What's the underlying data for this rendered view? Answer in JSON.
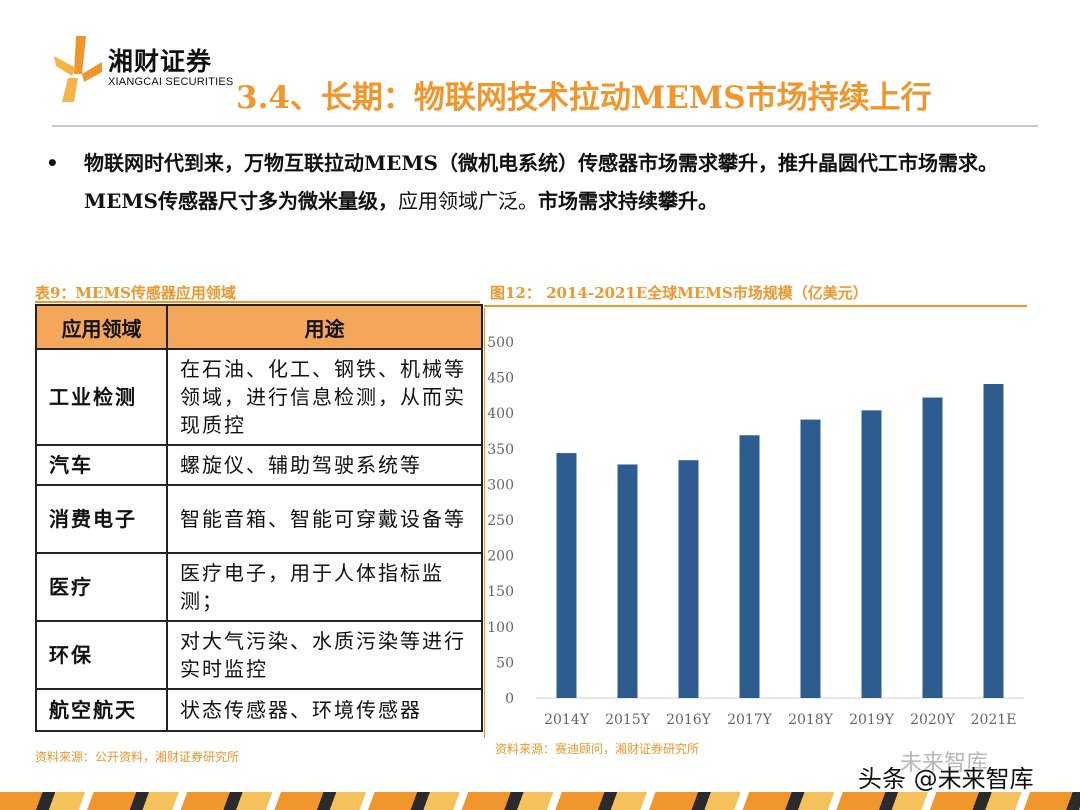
{
  "brand": {
    "name_cn": "湘财证券",
    "name_en": "XIANGCAI SECURITIES",
    "accent": "#F0962C",
    "bar_color": "#2F5C8F"
  },
  "slide": {
    "title": "3.4、长期：物联网技术拉动MEMS市场持续上行"
  },
  "bullet": {
    "marker": "•",
    "bold_part": "物联网时代到来，万物互联拉动MEMS（微机电系统）传感器市场需求攀升，推升晶圆代工市场需求。MEMS传感器尺寸多为微米量级，",
    "normal_part": "应用领域广泛。",
    "end_part": "市场需求持续攀升。"
  },
  "table": {
    "caption": "表9：MEMS传感器应用领域",
    "headers": [
      "应用领域",
      "用途"
    ],
    "rows": [
      {
        "field": "工业检测",
        "use": "在石油、化工、钢铁、机械等领域，进行信息检测，从而实现质控"
      },
      {
        "field": "汽车",
        "use": "螺旋仪、辅助驾驶系统等"
      },
      {
        "field": "消费电子",
        "use": "智能音箱、智能可穿戴设备等"
      },
      {
        "field": "医疗",
        "use": "医疗电子，用于人体指标监测；"
      },
      {
        "field": "环保",
        "use": "对大气污染、水质污染等进行实时监控"
      },
      {
        "field": "航空航天",
        "use": "状态传感器、环境传感器"
      }
    ],
    "source": "资料来源：公开资料，湘财证券研究所"
  },
  "figure": {
    "caption": "图12：  2014-2021E全球MEMS市场规模（亿美元）",
    "source": "资料来源：赛迪顾问，湘财证券研究所"
  },
  "chart_data": {
    "type": "bar",
    "categories": [
      "2014Y",
      "2015Y",
      "2016Y",
      "2017Y",
      "2018Y",
      "2019Y",
      "2020Y",
      "2021E"
    ],
    "values": [
      344,
      328,
      334,
      369,
      391,
      404,
      422,
      441
    ],
    "title": "2014-2021E全球MEMS市场规模（亿美元）",
    "xlabel": "",
    "ylabel": "",
    "ylim": [
      0,
      500
    ],
    "yticks": [
      0,
      50,
      100,
      150,
      200,
      250,
      300,
      350,
      400,
      450,
      500
    ],
    "grid": false,
    "legend": "none"
  },
  "watermark": {
    "text": "头条 @未来智库",
    "faded_text": "未来智库"
  }
}
